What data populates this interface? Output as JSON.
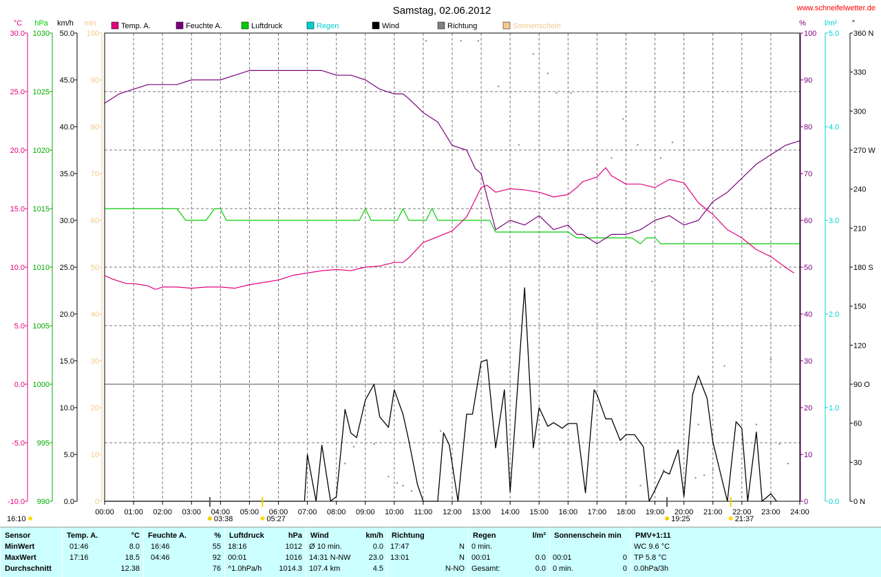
{
  "title": "Samstag, 02.06.2012",
  "site": "www.schneifelwetter.de",
  "colors": {
    "temp": "#e0007c",
    "hum": "#7a007a",
    "press": "#00cc00",
    "rain": "#00d0d0",
    "wind": "#000000",
    "dir": "#808080",
    "sun": "#f5c98a",
    "left_temp": "#e0007c",
    "left_press": "#00aa00"
  },
  "legend": [
    {
      "label": "Temp. A.",
      "color": "#e0007c"
    },
    {
      "label": "Feuchte A.",
      "color": "#7a007a"
    },
    {
      "label": "Luftdruck",
      "color": "#00cc00"
    },
    {
      "label": "Regen",
      "color": "#00d0d0"
    },
    {
      "label": "Wind",
      "color": "#000000"
    },
    {
      "label": "Richtung",
      "color": "#808080"
    },
    {
      "label": "Sonnenschein",
      "color": "#f5c98a"
    }
  ],
  "units_left": [
    "°C",
    "hPa",
    "km/h",
    "min"
  ],
  "units_right": [
    "%",
    "l/m²",
    "°"
  ],
  "axes": {
    "temp_ticks": [
      "30.0",
      "25.0",
      "20.0",
      "15.0",
      "10.0",
      "5.0",
      "0.0",
      "-5.0",
      "-10.0"
    ],
    "press_ticks": [
      "1030",
      "1025",
      "1020",
      "1015",
      "1010",
      "1005",
      "1000",
      "995",
      "990"
    ],
    "wind_ticks": [
      "50.0",
      "45.0",
      "40.0",
      "35.0",
      "30.0",
      "25.0",
      "20.0",
      "15.0",
      "10.0",
      "5.0",
      "0.0"
    ],
    "sun_ticks": [
      "100",
      "90",
      "80",
      "70",
      "60",
      "50",
      "40",
      "30",
      "20",
      "10",
      "0"
    ],
    "hum_ticks": [
      "100",
      "90",
      "80",
      "70",
      "60",
      "50",
      "40",
      "30",
      "20",
      "10",
      "0"
    ],
    "rain_ticks": [
      "5.0",
      "4.0",
      "3.0",
      "2.0",
      "1.0",
      "0.0"
    ],
    "dir_ticks": [
      "360 N",
      "330",
      "300",
      "270 W",
      "240",
      "210",
      "180 S",
      "150",
      "120",
      "90 O",
      "60",
      "30",
      "0 N"
    ],
    "hours": [
      "00:00",
      "01:00",
      "02:00",
      "03:00",
      "04:00",
      "05:00",
      "06:00",
      "07:00",
      "08:00",
      "09:00",
      "10:00",
      "11:00",
      "12:00",
      "13:00",
      "14:00",
      "15:00",
      "16:00",
      "17:00",
      "18:00",
      "19:00",
      "20:00",
      "21:00",
      "22:00",
      "23:00",
      "24:00"
    ]
  },
  "sun_times": {
    "start": "16:10",
    "sunrise": "05:27",
    "dawn": "03:38",
    "sunset": "21:37",
    "dusk": "19:25"
  },
  "chart_data": {
    "type": "line",
    "x_unit": "hour",
    "series": [
      {
        "name": "Temp. A.",
        "unit": "°C",
        "values": [
          [
            0,
            9.3
          ],
          [
            0.25,
            9.0
          ],
          [
            0.5,
            8.8
          ],
          [
            0.75,
            8.6
          ],
          [
            1,
            8.6
          ],
          [
            1.25,
            8.5
          ],
          [
            1.5,
            8.4
          ],
          [
            1.75,
            8.1
          ],
          [
            2,
            8.3
          ],
          [
            2.5,
            8.3
          ],
          [
            3,
            8.2
          ],
          [
            3.5,
            8.3
          ],
          [
            4,
            8.3
          ],
          [
            4.5,
            8.2
          ],
          [
            5,
            8.5
          ],
          [
            5.5,
            8.7
          ],
          [
            6,
            8.9
          ],
          [
            6.5,
            9.3
          ],
          [
            7,
            9.5
          ],
          [
            7.5,
            9.7
          ],
          [
            8,
            9.8
          ],
          [
            8.5,
            9.7
          ],
          [
            9,
            10.0
          ],
          [
            9.5,
            10.1
          ],
          [
            10,
            10.4
          ],
          [
            10.3,
            10.4
          ],
          [
            10.5,
            10.8
          ],
          [
            11,
            12.1
          ],
          [
            11.5,
            12.6
          ],
          [
            12,
            13.1
          ],
          [
            12.5,
            14.3
          ],
          [
            12.8,
            15.8
          ],
          [
            13,
            16.8
          ],
          [
            13.2,
            17.0
          ],
          [
            13.5,
            16.4
          ],
          [
            14,
            16.7
          ],
          [
            14.5,
            16.6
          ],
          [
            15,
            16.4
          ],
          [
            15.5,
            16.0
          ],
          [
            16,
            16.2
          ],
          [
            16.3,
            16.8
          ],
          [
            16.5,
            17.3
          ],
          [
            17,
            17.7
          ],
          [
            17.3,
            18.5
          ],
          [
            17.5,
            17.8
          ],
          [
            18,
            17.1
          ],
          [
            18.5,
            17.1
          ],
          [
            19,
            16.8
          ],
          [
            19.5,
            17.5
          ],
          [
            20,
            17.2
          ],
          [
            20.5,
            15.5
          ],
          [
            21,
            14.5
          ],
          [
            21.5,
            13.2
          ],
          [
            22,
            12.5
          ],
          [
            22.5,
            11.5
          ],
          [
            23,
            10.9
          ],
          [
            23.5,
            10.0
          ],
          [
            23.8,
            9.5
          ]
        ]
      },
      {
        "name": "Feuchte A.",
        "unit": "%",
        "values": [
          [
            0,
            85
          ],
          [
            0.25,
            86
          ],
          [
            0.5,
            87
          ],
          [
            1,
            88
          ],
          [
            1.5,
            89
          ],
          [
            2,
            89
          ],
          [
            2.5,
            89
          ],
          [
            3,
            90
          ],
          [
            3.5,
            90
          ],
          [
            4,
            90
          ],
          [
            4.5,
            91
          ],
          [
            5,
            92
          ],
          [
            5.5,
            92
          ],
          [
            6,
            92
          ],
          [
            6.5,
            92
          ],
          [
            7,
            92
          ],
          [
            7.5,
            92
          ],
          [
            8,
            91
          ],
          [
            8.5,
            91
          ],
          [
            9,
            90
          ],
          [
            9.5,
            88
          ],
          [
            10,
            87
          ],
          [
            10.3,
            87
          ],
          [
            10.5,
            86
          ],
          [
            11,
            83
          ],
          [
            11.5,
            81
          ],
          [
            12,
            76
          ],
          [
            12.5,
            75
          ],
          [
            12.8,
            71
          ],
          [
            13,
            70
          ],
          [
            13.2,
            65
          ],
          [
            13.5,
            58
          ],
          [
            14,
            60
          ],
          [
            14.5,
            59
          ],
          [
            15,
            61
          ],
          [
            15.5,
            58
          ],
          [
            16,
            59
          ],
          [
            16.3,
            57
          ],
          [
            16.5,
            57
          ],
          [
            17,
            55
          ],
          [
            17.5,
            57
          ],
          [
            18,
            57
          ],
          [
            18.5,
            58
          ],
          [
            19,
            60
          ],
          [
            19.5,
            61
          ],
          [
            20,
            59
          ],
          [
            20.5,
            60
          ],
          [
            21,
            64
          ],
          [
            21.5,
            66
          ],
          [
            22,
            69
          ],
          [
            22.5,
            72
          ],
          [
            23,
            74
          ],
          [
            23.5,
            76
          ],
          [
            24,
            77
          ]
        ]
      },
      {
        "name": "Luftdruck",
        "unit": "hPa",
        "values": [
          [
            0,
            1015.0
          ],
          [
            2.5,
            1015.0
          ],
          [
            2.8,
            1014.0
          ],
          [
            3.5,
            1014.0
          ],
          [
            3.8,
            1015.0
          ],
          [
            4,
            1015.0
          ],
          [
            4.2,
            1014.0
          ],
          [
            8.8,
            1014.0
          ],
          [
            9,
            1015.0
          ],
          [
            9.2,
            1014.0
          ],
          [
            10.1,
            1014.0
          ],
          [
            10.3,
            1015.0
          ],
          [
            10.5,
            1014.0
          ],
          [
            11.1,
            1014.0
          ],
          [
            11.3,
            1015.0
          ],
          [
            11.5,
            1014.0
          ],
          [
            13.3,
            1014.0
          ],
          [
            13.5,
            1013.0
          ],
          [
            16,
            1013.0
          ],
          [
            16.3,
            1012.5
          ],
          [
            18.2,
            1012.5
          ],
          [
            18.5,
            1012.0
          ],
          [
            18.7,
            1012.5
          ],
          [
            19,
            1012.5
          ],
          [
            19.2,
            1012.0
          ],
          [
            24,
            1012.0
          ]
        ]
      },
      {
        "name": "Wind",
        "unit": "km/h",
        "values": [
          [
            0,
            0
          ],
          [
            6.9,
            0
          ],
          [
            7.0,
            5.0
          ],
          [
            7.3,
            0
          ],
          [
            7.5,
            6.0
          ],
          [
            7.8,
            0
          ],
          [
            8.0,
            0.5
          ],
          [
            8.3,
            9.8
          ],
          [
            8.5,
            7.3
          ],
          [
            8.7,
            6.8
          ],
          [
            9.0,
            10.8
          ],
          [
            9.3,
            12.5
          ],
          [
            9.5,
            9.0
          ],
          [
            9.8,
            7.9
          ],
          [
            10.0,
            11.9
          ],
          [
            10.3,
            9.3
          ],
          [
            10.5,
            6.5
          ],
          [
            10.8,
            1.8
          ],
          [
            11.0,
            0
          ],
          [
            11.5,
            0
          ],
          [
            11.7,
            7.3
          ],
          [
            11.9,
            6.0
          ],
          [
            12.2,
            0
          ],
          [
            12.5,
            9.3
          ],
          [
            12.7,
            9.3
          ],
          [
            13.0,
            14.9
          ],
          [
            13.2,
            15.1
          ],
          [
            13.5,
            5.7
          ],
          [
            13.8,
            11.9
          ],
          [
            14.0,
            1.0
          ],
          [
            14.5,
            22.8
          ],
          [
            14.8,
            5.7
          ],
          [
            15.0,
            10.0
          ],
          [
            15.3,
            8.0
          ],
          [
            15.5,
            8.4
          ],
          [
            15.8,
            7.8
          ],
          [
            16.0,
            8.3
          ],
          [
            16.3,
            8.3
          ],
          [
            16.6,
            0.9
          ],
          [
            16.9,
            11.9
          ],
          [
            17.0,
            11.4
          ],
          [
            17.3,
            8.8
          ],
          [
            17.5,
            8.8
          ],
          [
            17.8,
            6.5
          ],
          [
            18.0,
            7.1
          ],
          [
            18.3,
            7.1
          ],
          [
            18.6,
            5.8
          ],
          [
            18.8,
            0
          ],
          [
            19.0,
            1.2
          ],
          [
            19.3,
            3.2
          ],
          [
            19.5,
            2.9
          ],
          [
            19.8,
            5.5
          ],
          [
            20.0,
            0.5
          ],
          [
            20.3,
            11.4
          ],
          [
            20.5,
            13.4
          ],
          [
            20.8,
            11.0
          ],
          [
            21.0,
            6.3
          ],
          [
            21.3,
            2.5
          ],
          [
            21.5,
            0
          ],
          [
            21.8,
            8.5
          ],
          [
            22.0,
            7.8
          ],
          [
            22.2,
            0
          ],
          [
            22.5,
            7.4
          ],
          [
            22.7,
            0
          ],
          [
            23.0,
            0.8
          ],
          [
            23.2,
            0
          ]
        ]
      },
      {
        "name": "Richtung",
        "unit": "°",
        "values": [
          [
            9.3,
            44
          ],
          [
            10.1,
            14
          ],
          [
            11.1,
            354
          ],
          [
            11.6,
            54
          ],
          [
            12.3,
            354
          ],
          [
            12.9,
            354
          ],
          [
            13.6,
            319
          ],
          [
            14.3,
            274
          ],
          [
            14.8,
            344
          ],
          [
            15.3,
            329
          ],
          [
            15.6,
            314
          ],
          [
            16.1,
            314
          ],
          [
            17.0,
            259
          ],
          [
            17.5,
            264
          ],
          [
            17.9,
            294
          ],
          [
            18.4,
            274
          ],
          [
            18.9,
            169
          ],
          [
            19.2,
            264
          ],
          [
            19.6,
            276
          ],
          [
            20.0,
            329
          ],
          [
            20.5,
            59
          ],
          [
            21.0,
            24
          ],
          [
            21.4,
            104
          ],
          [
            21.7,
            39
          ],
          [
            22.5,
            59
          ],
          [
            23.0,
            109
          ],
          [
            23.3,
            44
          ],
          [
            8.3,
            29
          ],
          [
            8.6,
            42
          ],
          [
            9.8,
            19
          ],
          [
            10.3,
            12
          ],
          [
            10.6,
            8
          ],
          [
            11.5,
            4
          ],
          [
            12.0,
            2
          ],
          [
            18.0,
            4
          ],
          [
            18.5,
            12
          ],
          [
            19.3,
            24
          ],
          [
            20.4,
            18
          ],
          [
            20.7,
            20
          ],
          [
            23.6,
            29
          ]
        ]
      }
    ],
    "ylim_temp": [
      -10,
      30
    ],
    "ylim_press": [
      990,
      1030
    ],
    "ylim_wind": [
      0,
      50
    ],
    "ylim_hum": [
      0,
      100
    ],
    "ylim_rain": [
      0,
      5
    ],
    "ylim_dir": [
      0,
      360
    ],
    "ylim_sun": [
      0,
      100
    ],
    "xlim": [
      0,
      24
    ],
    "grid": true
  },
  "summary": {
    "sensor": {
      "hdr": "Sensor",
      "rows": [
        "MinWert",
        "MaxWert",
        "Durchschnitt"
      ]
    },
    "temp": {
      "hdr": "Temp. A.",
      "unit": "°C",
      "rows": [
        [
          "01:46",
          "8.0"
        ],
        [
          "17:16",
          "18.5"
        ],
        [
          "",
          "12.38"
        ]
      ]
    },
    "hum": {
      "hdr": "Feuchte A.",
      "unit": "%",
      "rows": [
        [
          "16:46",
          "55"
        ],
        [
          "04:46",
          "92"
        ],
        [
          "",
          "76"
        ]
      ]
    },
    "press": {
      "hdr": "Luftdruck",
      "unit": "hPa",
      "rows": [
        [
          "18:16",
          "1012"
        ],
        [
          "00:01",
          "1016"
        ],
        [
          "^1.0hPa/h",
          "1014.3"
        ]
      ]
    },
    "wind": {
      "hdr": "Wind",
      "unit": "km/h",
      "rows": [
        [
          "Ø 10 min.",
          "0.0"
        ],
        [
          "14:31  N-NW",
          "23.0"
        ],
        [
          "107.4 km",
          "4.5"
        ]
      ]
    },
    "dir": {
      "hdr": "Richtung",
      "unit": "",
      "rows": [
        [
          "17:47",
          "N"
        ],
        [
          "13:01",
          "N"
        ],
        [
          "",
          "N-NO"
        ]
      ]
    },
    "rain": {
      "hdr": "Regen",
      "unit": "l/m²",
      "rows": [
        [
          "0 min.",
          ""
        ],
        [
          "00:01",
          "0.0"
        ],
        [
          "Gesamt:",
          "0.0"
        ]
      ]
    },
    "sun": {
      "hdr": "Sonnenschein min",
      "unit": "",
      "rows": [
        [
          "",
          ""
        ],
        [
          "00:01",
          "0"
        ],
        [
          "0 min.",
          "0"
        ]
      ]
    },
    "pmv": {
      "hdr": "PMV+1:11",
      "unit": "",
      "rows": [
        [
          "WC 9.6 °C",
          ""
        ],
        [
          "TP 5.8 °C",
          ""
        ],
        [
          "0.0hPa/3h",
          ""
        ]
      ]
    }
  }
}
